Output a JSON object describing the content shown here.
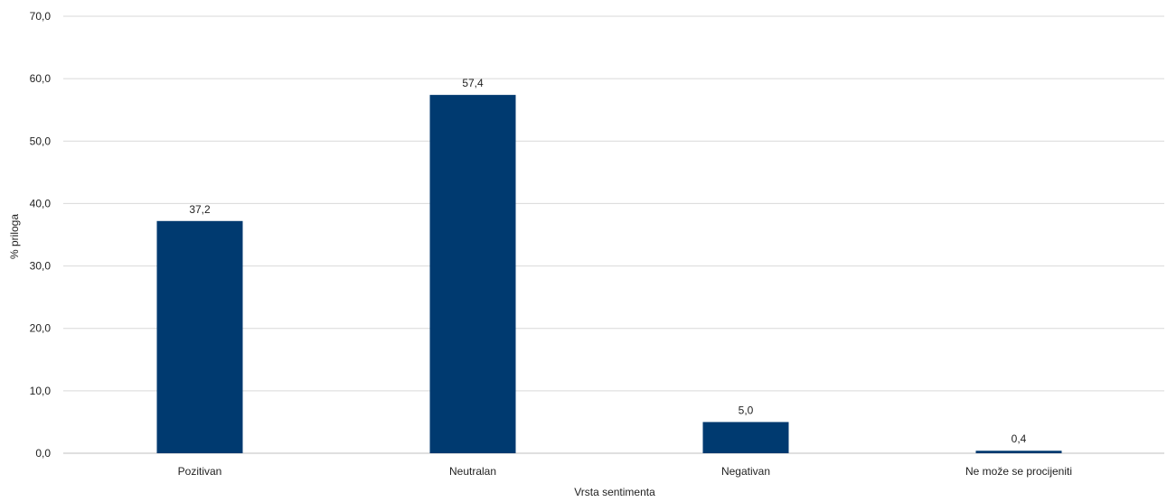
{
  "chart_data": {
    "type": "bar",
    "categories": [
      "Pozitivan",
      "Neutralan",
      "Negativan",
      "Ne može se procijeniti"
    ],
    "values": [
      37.2,
      57.4,
      5.0,
      0.4
    ],
    "value_labels": [
      "37,2",
      "57,4",
      "5,0",
      "0,4"
    ],
    "xlabel": "Vrsta sentimenta",
    "ylabel": "% priloga",
    "ylim": [
      0,
      70
    ],
    "y_ticks": [
      0,
      10,
      20,
      30,
      40,
      50,
      60,
      70
    ],
    "y_tick_labels": [
      "0,0",
      "10,0",
      "20,0",
      "30,0",
      "40,0",
      "50,0",
      "60,0",
      "70,0"
    ],
    "grid": true,
    "legend": "none",
    "colors": {
      "bar": "#003a70",
      "grid": "#d9d9d9",
      "baseline": "#bfbfbf",
      "text": "#1f1f1f"
    }
  }
}
